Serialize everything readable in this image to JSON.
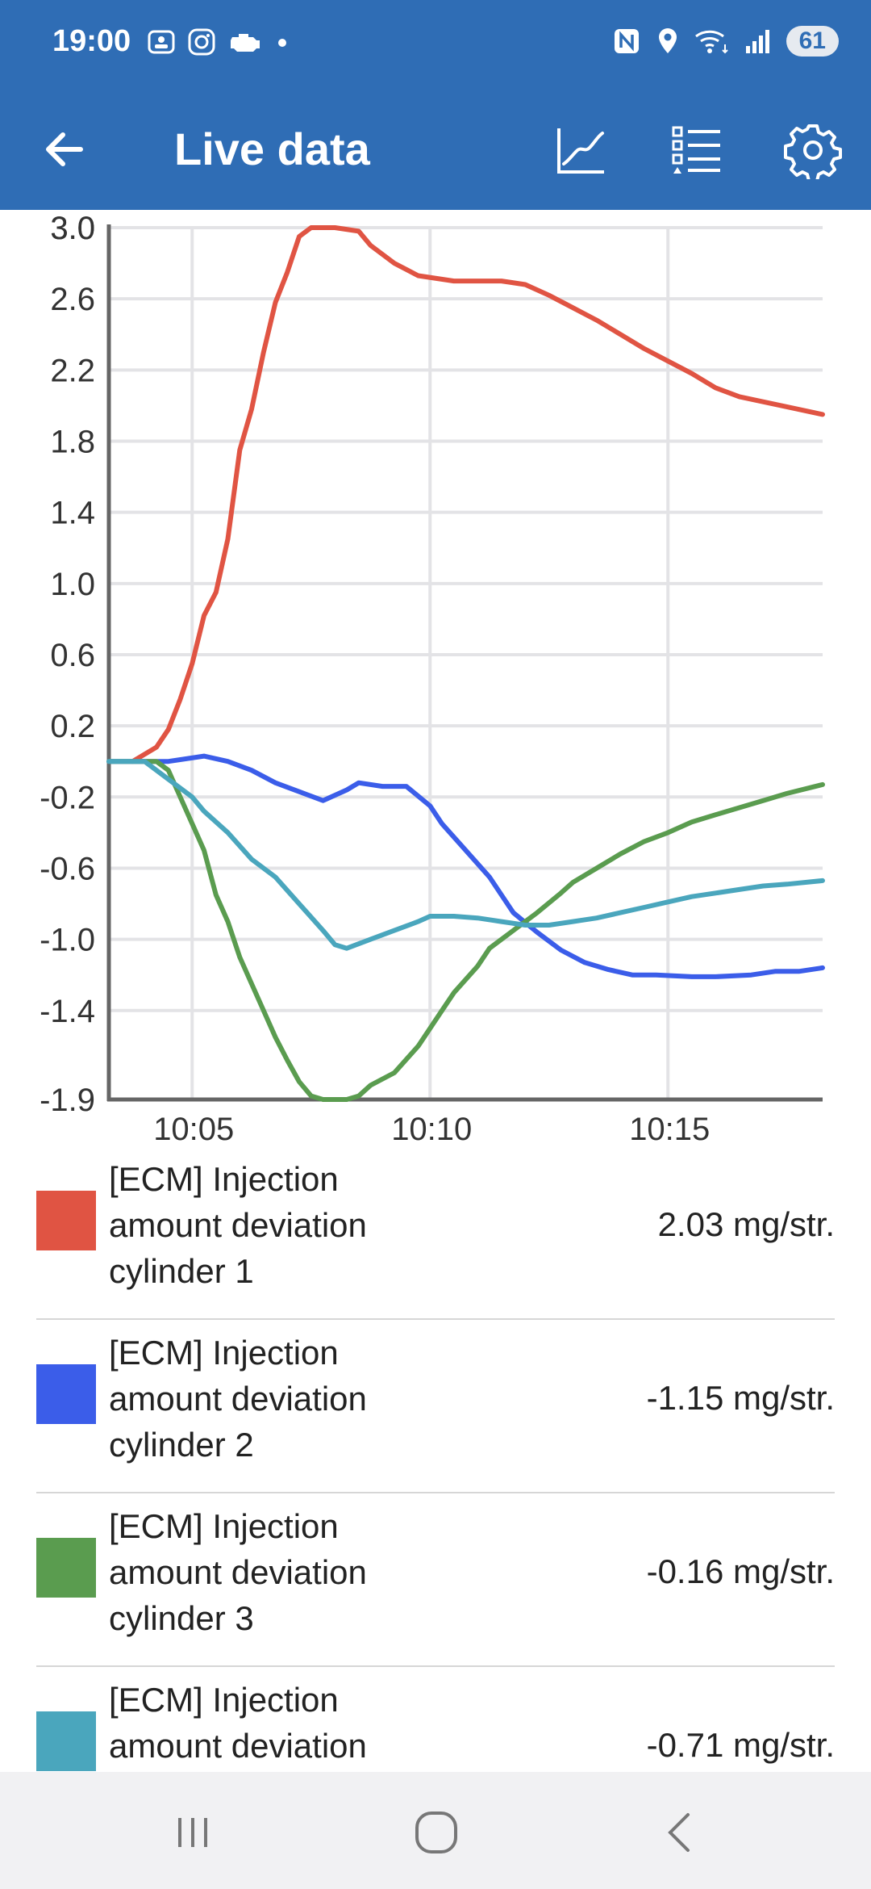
{
  "status_bar": {
    "time": "19:00",
    "battery": "61",
    "icons_left": [
      "screenshot-icon",
      "instagram-icon",
      "car-engine-icon",
      "dot-icon"
    ],
    "icons_right": [
      "nfc-icon",
      "location-icon",
      "wifi-icon",
      "signal-icon"
    ]
  },
  "app_bar": {
    "title": "Live data",
    "back_icon": "arrow-left-icon",
    "actions": [
      "chart-icon",
      "list-icon",
      "gear-icon"
    ],
    "color": "#2f6db5"
  },
  "chart_data": {
    "type": "line",
    "yticks": [
      "3.0",
      "3.0",
      "2.6",
      "2.2",
      "1.8",
      "1.4",
      "1.0",
      "0.6",
      "0.2",
      "-0.2",
      "-0.6",
      "-1.0",
      "-1.4",
      "-1.9"
    ],
    "ylim": [
      -1.9,
      3.0
    ],
    "xticks": [
      "10:05",
      "10:10",
      "10:15"
    ],
    "xlim": [
      "10:03:15",
      "10:18:15"
    ],
    "grid": true,
    "series": [
      {
        "color": "#e05443",
        "points": [
          [
            "10:03:45",
            0.0
          ],
          [
            "10:04:15",
            0.08
          ],
          [
            "10:04:30",
            0.18
          ],
          [
            "10:04:45",
            0.35
          ],
          [
            "10:05:00",
            0.55
          ],
          [
            "10:05:15",
            0.82
          ],
          [
            "10:05:30",
            0.95
          ],
          [
            "10:05:45",
            1.25
          ],
          [
            "10:06:00",
            1.75
          ],
          [
            "10:06:15",
            1.98
          ],
          [
            "10:06:30",
            2.3
          ],
          [
            "10:06:45",
            2.58
          ],
          [
            "10:07:00",
            2.75
          ],
          [
            "10:07:15",
            2.95
          ],
          [
            "10:07:30",
            3.0
          ],
          [
            "10:08:00",
            3.0
          ],
          [
            "10:08:30",
            2.98
          ],
          [
            "10:08:45",
            2.9
          ],
          [
            "10:09:15",
            2.8
          ],
          [
            "10:09:45",
            2.73
          ],
          [
            "10:10:30",
            2.7
          ],
          [
            "10:11:30",
            2.7
          ],
          [
            "10:12:00",
            2.68
          ],
          [
            "10:12:30",
            2.62
          ],
          [
            "10:13:00",
            2.55
          ],
          [
            "10:13:30",
            2.48
          ],
          [
            "10:14:00",
            2.4
          ],
          [
            "10:14:30",
            2.32
          ],
          [
            "10:15:00",
            2.25
          ],
          [
            "10:15:30",
            2.18
          ],
          [
            "10:16:00",
            2.1
          ],
          [
            "10:16:30",
            2.05
          ],
          [
            "10:18:15",
            1.95
          ]
        ]
      },
      {
        "color": "#3b5de9",
        "points": [
          [
            "10:03:15",
            0.0
          ],
          [
            "10:04:30",
            0.0
          ],
          [
            "10:05:15",
            0.03
          ],
          [
            "10:05:45",
            0.0
          ],
          [
            "10:06:15",
            -0.05
          ],
          [
            "10:06:45",
            -0.12
          ],
          [
            "10:07:15",
            -0.17
          ],
          [
            "10:07:45",
            -0.22
          ],
          [
            "10:08:15",
            -0.16
          ],
          [
            "10:08:30",
            -0.12
          ],
          [
            "10:09:00",
            -0.14
          ],
          [
            "10:09:30",
            -0.14
          ],
          [
            "10:10:00",
            -0.25
          ],
          [
            "10:10:15",
            -0.35
          ],
          [
            "10:10:45",
            -0.5
          ],
          [
            "10:11:15",
            -0.65
          ],
          [
            "10:11:45",
            -0.85
          ],
          [
            "10:12:15",
            -0.96
          ],
          [
            "10:12:45",
            -1.06
          ],
          [
            "10:13:15",
            -1.13
          ],
          [
            "10:13:45",
            -1.17
          ],
          [
            "10:14:15",
            -1.2
          ],
          [
            "10:14:45",
            -1.2
          ],
          [
            "10:15:30",
            -1.21
          ],
          [
            "10:16:00",
            -1.21
          ],
          [
            "10:16:45",
            -1.2
          ],
          [
            "10:17:15",
            -1.18
          ],
          [
            "10:17:45",
            -1.18
          ],
          [
            "10:18:15",
            -1.16
          ]
        ]
      },
      {
        "color": "#5a9c4f",
        "points": [
          [
            "10:03:15",
            0.0
          ],
          [
            "10:04:15",
            0.0
          ],
          [
            "10:04:30",
            -0.05
          ],
          [
            "10:04:45",
            -0.2
          ],
          [
            "10:05:00",
            -0.35
          ],
          [
            "10:05:15",
            -0.5
          ],
          [
            "10:05:30",
            -0.75
          ],
          [
            "10:05:45",
            -0.9
          ],
          [
            "10:06:00",
            -1.1
          ],
          [
            "10:06:15",
            -1.25
          ],
          [
            "10:06:30",
            -1.4
          ],
          [
            "10:06:45",
            -1.55
          ],
          [
            "10:07:00",
            -1.68
          ],
          [
            "10:07:15",
            -1.8
          ],
          [
            "10:07:30",
            -1.88
          ],
          [
            "10:07:45",
            -1.9
          ],
          [
            "10:08:15",
            -1.9
          ],
          [
            "10:08:30",
            -1.88
          ],
          [
            "10:08:45",
            -1.82
          ],
          [
            "10:09:15",
            -1.75
          ],
          [
            "10:09:45",
            -1.6
          ],
          [
            "10:10:00",
            -1.5
          ],
          [
            "10:10:15",
            -1.4
          ],
          [
            "10:10:30",
            -1.3
          ],
          [
            "10:11:00",
            -1.15
          ],
          [
            "10:11:15",
            -1.05
          ],
          [
            "10:11:45",
            -0.95
          ],
          [
            "10:12:15",
            -0.85
          ],
          [
            "10:12:45",
            -0.74
          ],
          [
            "10:13:00",
            -0.68
          ],
          [
            "10:13:30",
            -0.6
          ],
          [
            "10:14:00",
            -0.52
          ],
          [
            "10:14:30",
            -0.45
          ],
          [
            "10:15:00",
            -0.4
          ],
          [
            "10:15:30",
            -0.34
          ],
          [
            "10:16:00",
            -0.3
          ],
          [
            "10:16:30",
            -0.26
          ],
          [
            "10:17:00",
            -0.22
          ],
          [
            "10:17:30",
            -0.18
          ],
          [
            "10:18:15",
            -0.13
          ]
        ]
      },
      {
        "color": "#4aa6bd",
        "points": [
          [
            "10:03:15",
            0.0
          ],
          [
            "10:04:00",
            0.0
          ],
          [
            "10:04:30",
            -0.1
          ],
          [
            "10:05:00",
            -0.2
          ],
          [
            "10:05:15",
            -0.28
          ],
          [
            "10:05:45",
            -0.4
          ],
          [
            "10:06:15",
            -0.55
          ],
          [
            "10:06:45",
            -0.65
          ],
          [
            "10:07:15",
            -0.8
          ],
          [
            "10:07:45",
            -0.95
          ],
          [
            "10:08:00",
            -1.03
          ],
          [
            "10:08:15",
            -1.05
          ],
          [
            "10:08:45",
            -1.0
          ],
          [
            "10:09:15",
            -0.95
          ],
          [
            "10:09:45",
            -0.9
          ],
          [
            "10:10:00",
            -0.87
          ],
          [
            "10:10:30",
            -0.87
          ],
          [
            "10:11:00",
            -0.88
          ],
          [
            "10:11:30",
            -0.9
          ],
          [
            "10:12:00",
            -0.92
          ],
          [
            "10:12:30",
            -0.92
          ],
          [
            "10:13:00",
            -0.9
          ],
          [
            "10:13:30",
            -0.88
          ],
          [
            "10:14:00",
            -0.85
          ],
          [
            "10:14:30",
            -0.82
          ],
          [
            "10:15:00",
            -0.79
          ],
          [
            "10:15:30",
            -0.76
          ],
          [
            "10:16:00",
            -0.74
          ],
          [
            "10:16:30",
            -0.72
          ],
          [
            "10:17:00",
            -0.7
          ],
          [
            "10:17:30",
            -0.69
          ],
          [
            "10:18:15",
            -0.67
          ]
        ]
      }
    ]
  },
  "legend": [
    {
      "label": "[ECM] Injection amount deviation cylinder 1",
      "value": "2.03 mg/str.",
      "color": "#e05443"
    },
    {
      "label": "[ECM] Injection amount deviation cylinder 2",
      "value": "-1.15 mg/str.",
      "color": "#3b5de9"
    },
    {
      "label": "[ECM] Injection amount deviation cylinder 3",
      "value": "-0.16 mg/str.",
      "color": "#5a9c4f"
    },
    {
      "label": "[ECM] Injection amount deviation",
      "value": "-0.71 mg/str.",
      "color": "#4aa6bd"
    }
  ],
  "nav_bar": {
    "buttons": [
      "recents-icon",
      "home-icon",
      "back-icon"
    ]
  }
}
